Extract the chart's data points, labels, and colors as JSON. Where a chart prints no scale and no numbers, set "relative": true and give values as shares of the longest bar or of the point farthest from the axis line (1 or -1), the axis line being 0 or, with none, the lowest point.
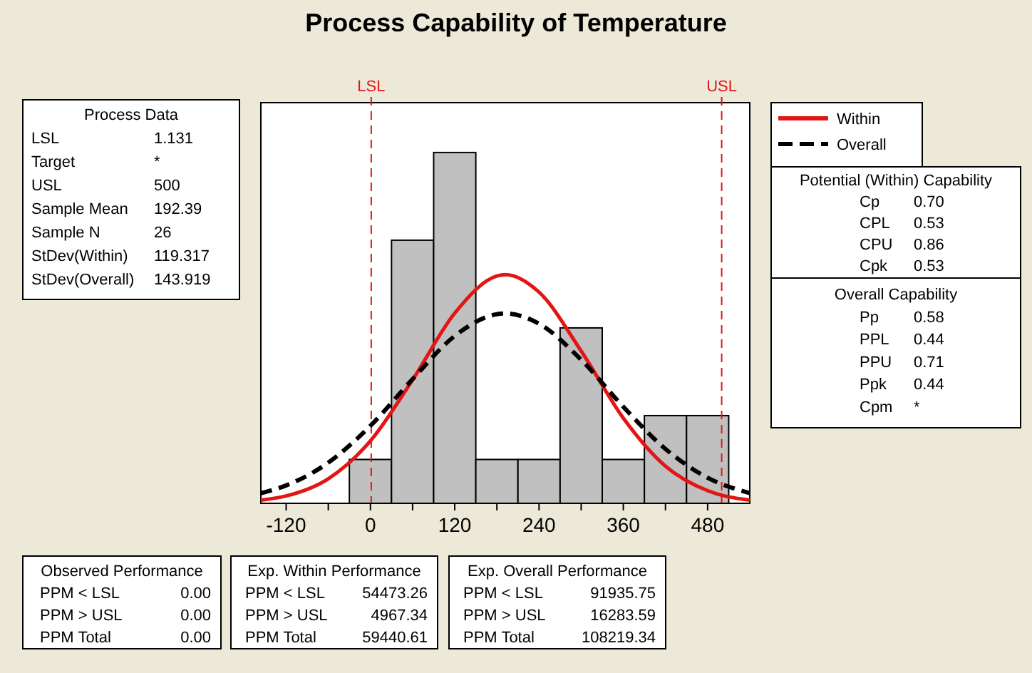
{
  "chart_data": {
    "type": "histogram",
    "title": "Process Capability of Temperature",
    "relative": true,
    "bins": [
      -30,
      30,
      90,
      150,
      210,
      270,
      330,
      390,
      450,
      510
    ],
    "values": [
      0.125,
      0.75,
      1,
      0.125,
      0.125,
      0.5,
      0.125,
      0.25,
      0.25
    ],
    "color": "#c0c0c0",
    "series": [
      {
        "type": "line",
        "name": "Within",
        "color": "#e31515",
        "line_style": "solid",
        "x": [
          -156,
          -120,
          -60,
          0,
          60,
          120,
          180,
          192,
          240,
          300,
          360,
          420,
          480,
          540
        ],
        "values": [
          0.009,
          0.021,
          0.07,
          0.178,
          0.352,
          0.542,
          0.648,
          0.652,
          0.602,
          0.434,
          0.243,
          0.106,
          0.036,
          0.009
        ]
      },
      {
        "type": "line",
        "name": "Overall",
        "color": "#000000",
        "line_style": "dashed",
        "x": [
          -156,
          -120,
          -60,
          0,
          60,
          120,
          180,
          192,
          240,
          300,
          360,
          420,
          480,
          540
        ],
        "values": [
          0.029,
          0.051,
          0.116,
          0.221,
          0.354,
          0.477,
          0.539,
          0.541,
          0.512,
          0.409,
          0.275,
          0.155,
          0.073,
          0.029
        ]
      }
    ],
    "xlim": [
      -156,
      540
    ],
    "xticks": [
      -120,
      {
        "value": -60,
        "label": null
      },
      0,
      {
        "value": 60,
        "label": null
      },
      120,
      {
        "value": 180,
        "label": null
      },
      240,
      {
        "value": 300,
        "label": null
      },
      360,
      {
        "value": 420,
        "label": null
      },
      480
    ],
    "ref_lines": [
      {
        "axis": "x",
        "value": 1.131,
        "label": "LSL",
        "color": "#e31515",
        "line_style": "dashed"
      },
      {
        "axis": "x",
        "value": 500,
        "label": "USL",
        "color": "#e31515",
        "line_style": "dashed"
      }
    ],
    "legend": "right",
    "grid": false,
    "annotations": [
      "Process Data\nLSL\t1.131\nTarget\t*\nUSL\t500\nSample Mean\t192.39\nSample N\t26\nStDev(Within)\t119.317\nStDev(Overall)\t143.919",
      "Potential (Within) Capability\nCp\t0.70\nCPL\t0.53\nCPU\t0.86\nCpk\t0.53",
      "Overall Capability\nPp\t0.58\nPPL\t0.44\nPPU\t0.71\nPpk\t0.44\nCpm\t*",
      "Observed Performance\nPPM < LSL\t0.00\nPPM > USL\t0.00\nPPM Total\t0.00",
      "Exp. Within Performance\nPPM < LSL\t54473.26\nPPM > USL\t4967.34\nPPM Total\t59440.61",
      "Exp. Overall Performance\nPPM < LSL\t91935.75\nPPM > USL\t16283.59\nPPM Total\t108219.34"
    ]
  }
}
